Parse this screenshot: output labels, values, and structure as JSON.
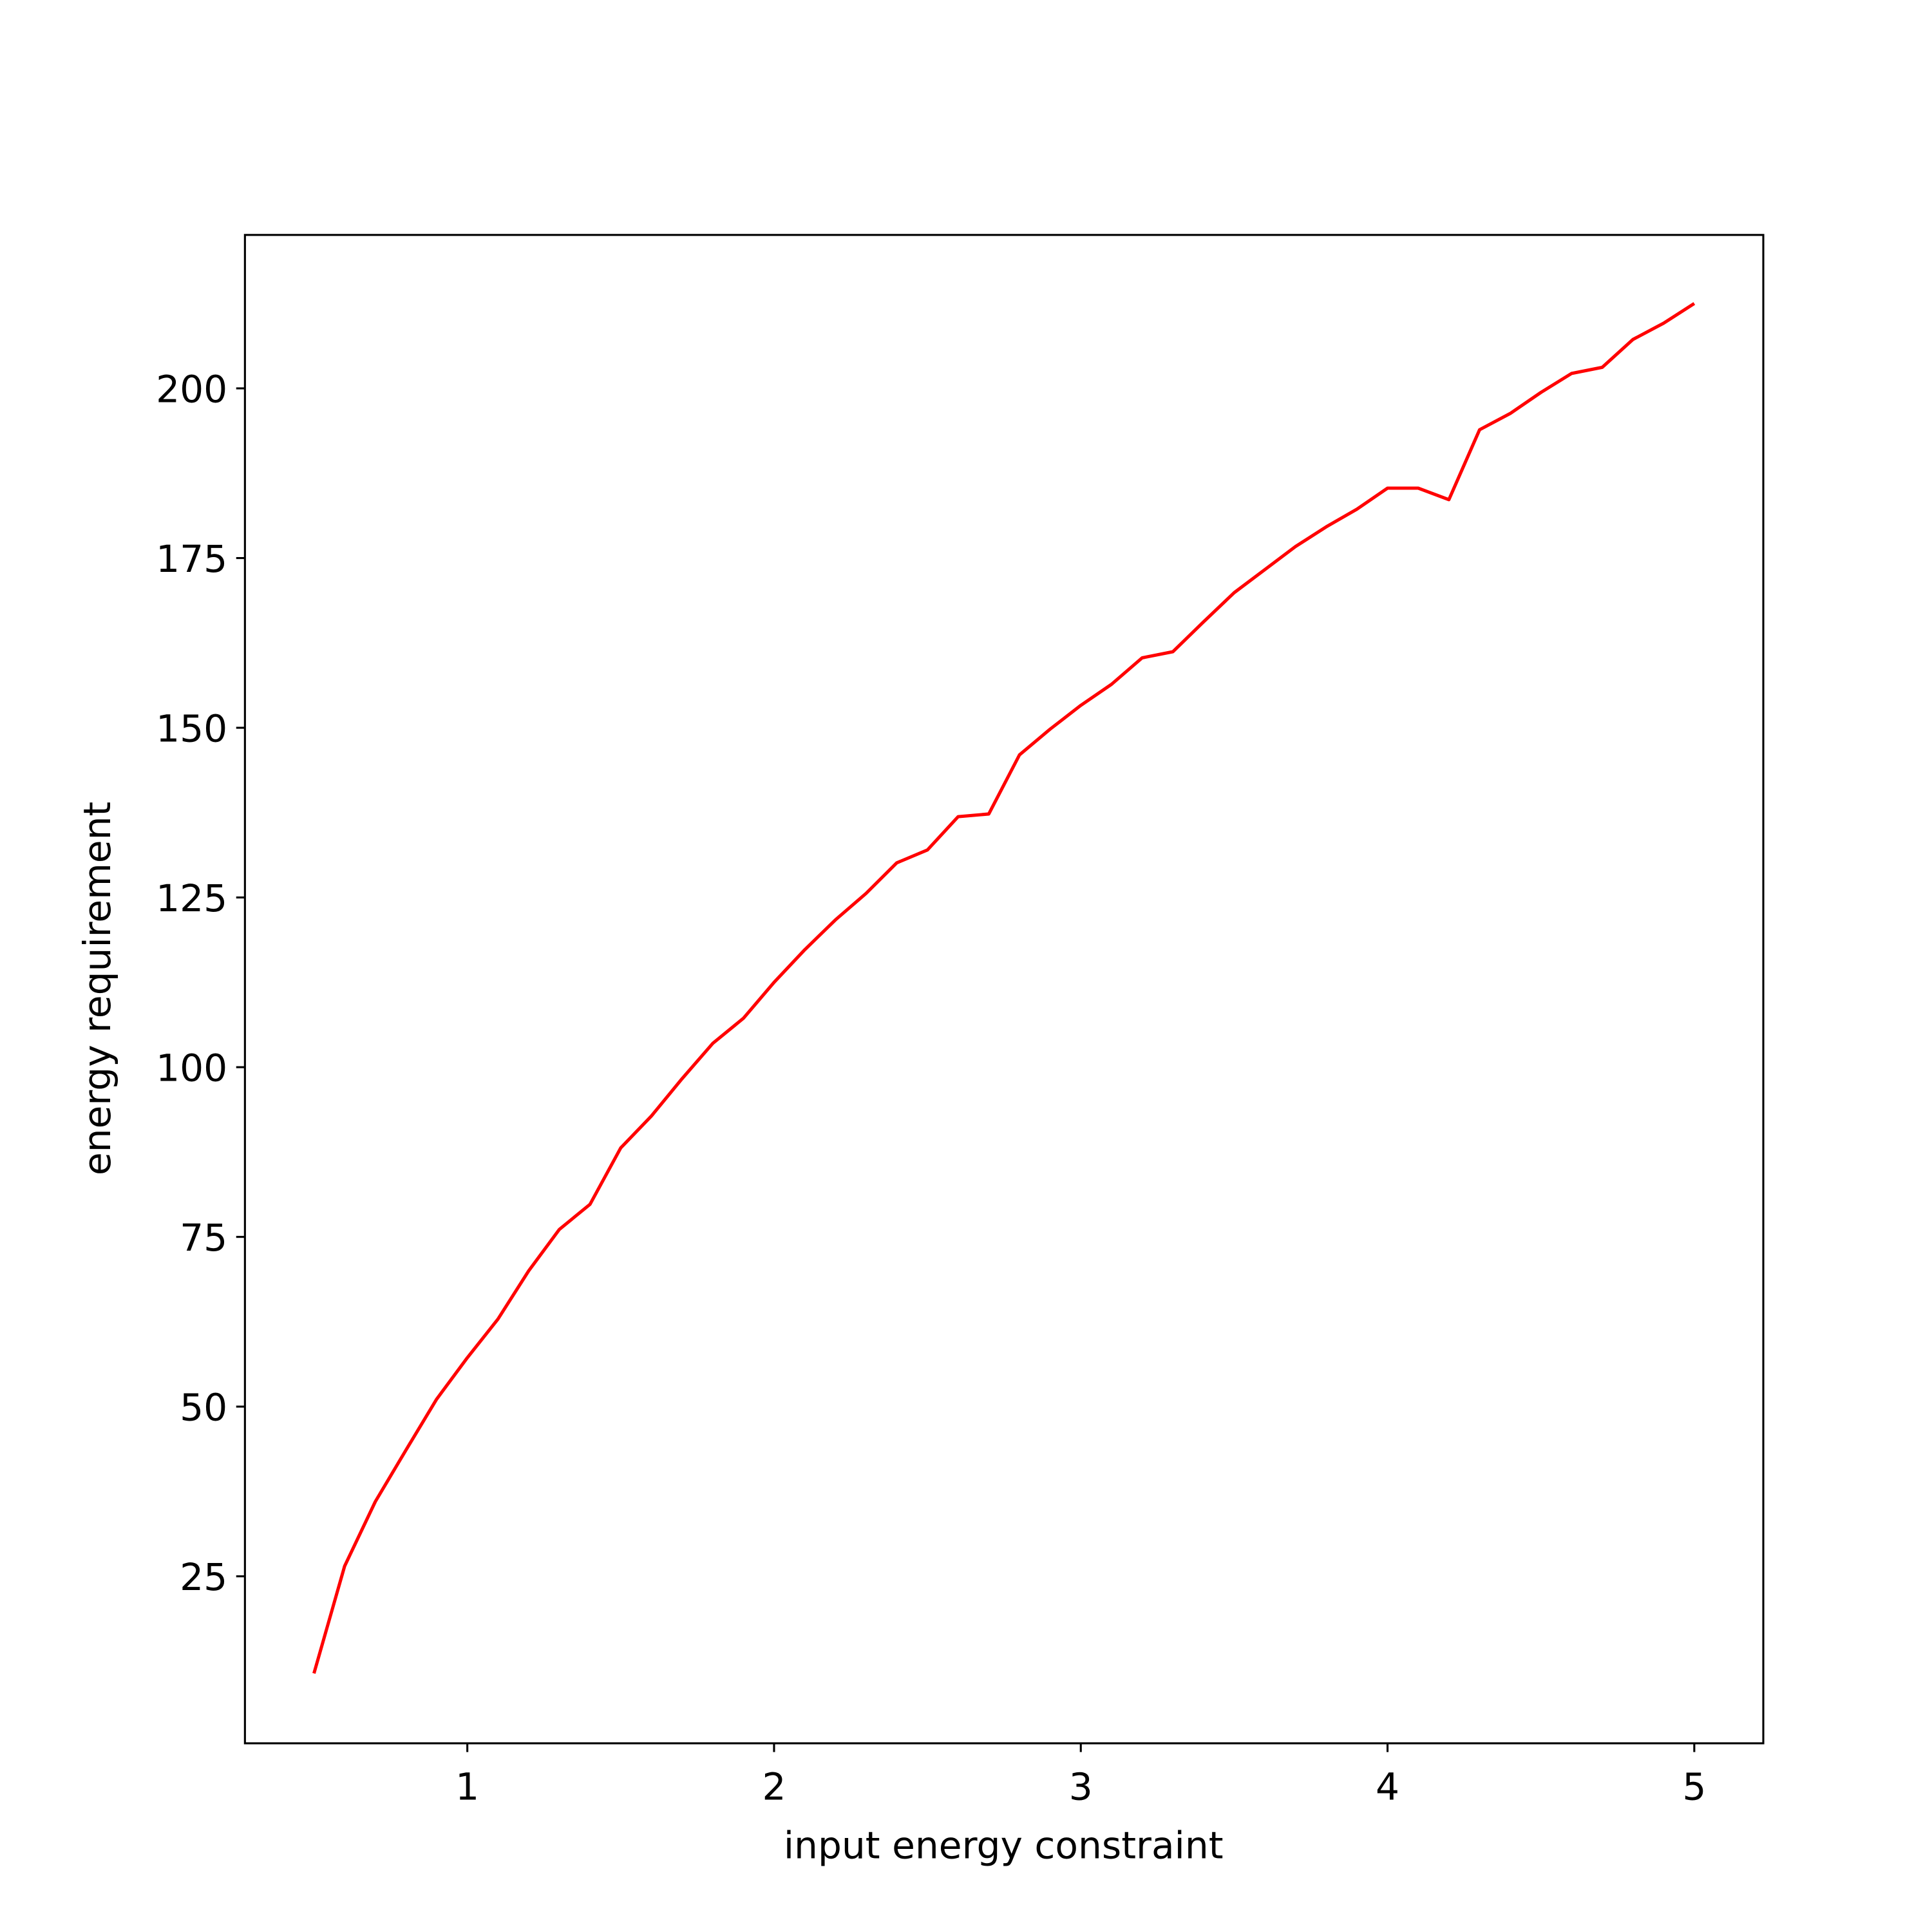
{
  "chart_data": {
    "type": "line",
    "x_label": "input energy constraint",
    "y_label": "energy requirement",
    "x": [
      0.5,
      0.6,
      0.7,
      0.8,
      0.9,
      1.0,
      1.1,
      1.2,
      1.3,
      1.4,
      1.5,
      1.6,
      1.7,
      1.8,
      1.9,
      2.0,
      2.1,
      2.2,
      2.3,
      2.4,
      2.5,
      2.6,
      2.7,
      2.8,
      2.9,
      3.0,
      3.1,
      3.2,
      3.3,
      3.4,
      3.5,
      3.6,
      3.7,
      3.8,
      3.9,
      4.0,
      4.1,
      4.2,
      4.3,
      4.4,
      4.5,
      4.6,
      4.7,
      4.8,
      4.9,
      5.0
    ],
    "series": [
      {
        "color": "#ff0000",
        "values": [
          10.7,
          26.5,
          36.0,
          43.6,
          51.1,
          57.2,
          62.9,
          70.0,
          76.1,
          79.8,
          88.1,
          92.8,
          98.3,
          103.5,
          107.2,
          112.5,
          117.3,
          121.7,
          125.6,
          130.1,
          132.0,
          136.9,
          137.3,
          146.0,
          149.8,
          153.3,
          156.4,
          160.3,
          161.2,
          165.6,
          169.9,
          173.3,
          176.7,
          179.6,
          182.2,
          185.3,
          185.3,
          183.6,
          193.9,
          196.3,
          199.4,
          202.2,
          203.1,
          207.2,
          209.6,
          212.5
        ]
      }
    ],
    "xlim": [
      0.275,
      5.225
    ],
    "xticks": [
      1,
      2,
      3,
      4,
      5
    ],
    "ylim": [
      0.4,
      222.6
    ],
    "yticks": [
      25,
      50,
      75,
      100,
      125,
      150,
      175,
      200
    ],
    "grid": false
  }
}
